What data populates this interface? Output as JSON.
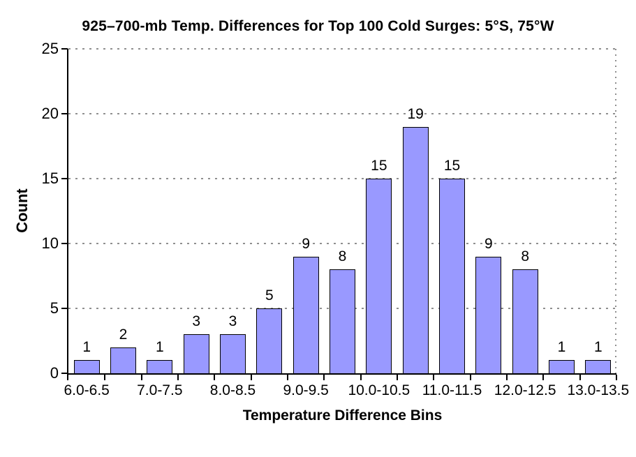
{
  "chart_data": {
    "type": "bar",
    "title": "925–700-mb Temp. Differences for Top 100 Cold Surges: 5°S, 75°W",
    "xlabel": "Temperature Difference Bins",
    "ylabel": "Count",
    "categories": [
      "6.0-6.5",
      "6.5-7.0",
      "7.0-7.5",
      "7.5-8.0",
      "8.0-8.5",
      "8.5-9.0",
      "9.0-9.5",
      "9.5-10.0",
      "10.0-10.5",
      "10.5-11.0",
      "11.0-11.5",
      "11.5-12.0",
      "12.0-12.5",
      "12.5-13.0",
      "13.0-13.5"
    ],
    "values": [
      1,
      2,
      1,
      3,
      3,
      5,
      9,
      8,
      15,
      19,
      15,
      9,
      8,
      1,
      1
    ],
    "data_labels_shown": true,
    "x_tick_labels_shown": [
      "6.0-6.5",
      "7.0-7.5",
      "8.0-8.5",
      "9.0-9.5",
      "10.0-10.5",
      "11.0-11.5",
      "12.0-12.5",
      "13.0-13.5"
    ],
    "x_labeled_bin_indices": [
      0,
      2,
      4,
      6,
      8,
      10,
      12,
      14
    ],
    "y_ticks": [
      0,
      5,
      10,
      15,
      20,
      25
    ],
    "ylim": [
      0,
      25
    ],
    "grid": "horizontal-dashed",
    "legend": "none",
    "colors": {
      "bar_fill": "#9999FF",
      "bar_border": "#000000",
      "gridline": "#8F8F8F",
      "axis": "#000000",
      "background": "#FFFFFF",
      "text": "#000000"
    }
  }
}
